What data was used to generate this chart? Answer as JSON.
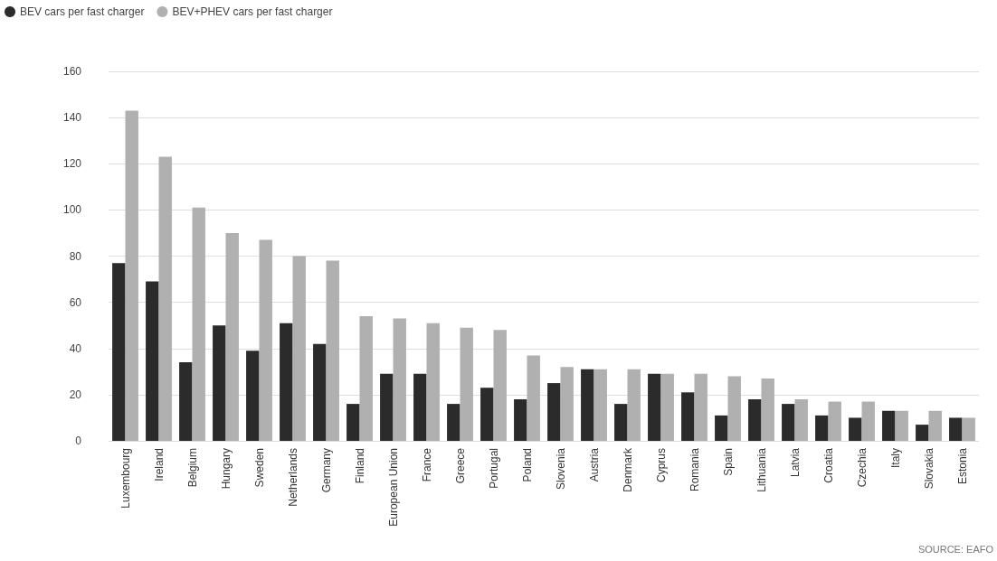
{
  "chart_data": {
    "type": "bar",
    "categories": [
      "Luxembourg",
      "Ireland",
      "Belgium",
      "Hungary",
      "Sweden",
      "Netherlands",
      "Germany",
      "Finland",
      "European Union",
      "France",
      "Greece",
      "Portugal",
      "Poland",
      "Slovenia",
      "Austria",
      "Denmark",
      "Cyprus",
      "Romania",
      "Spain",
      "Lithuania",
      "Latvia",
      "Croatia",
      "Czechia",
      "Italy",
      "Slovakia",
      "Estonia"
    ],
    "series": [
      {
        "name": "BEV cars per fast charger",
        "color": "#2b2b2b",
        "values": [
          77,
          69,
          34,
          50,
          39,
          51,
          42,
          16,
          29,
          29,
          16,
          23,
          18,
          25,
          31,
          16,
          29,
          21,
          11,
          18,
          16,
          11,
          10,
          13,
          7,
          10
        ]
      },
      {
        "name": "BEV+PHEV cars per fast charger",
        "color": "#b0b0b0",
        "values": [
          143,
          123,
          101,
          90,
          87,
          80,
          78,
          54,
          53,
          51,
          49,
          48,
          37,
          32,
          31,
          31,
          29,
          29,
          28,
          27,
          18,
          17,
          17,
          13,
          13,
          10
        ]
      }
    ],
    "ylim": [
      0,
      160
    ],
    "yticks": [
      0,
      20,
      40,
      60,
      80,
      100,
      120,
      140,
      160
    ],
    "grid": "y",
    "legend": "top left",
    "annotations": [
      "SOURCE: EAFO"
    ]
  }
}
